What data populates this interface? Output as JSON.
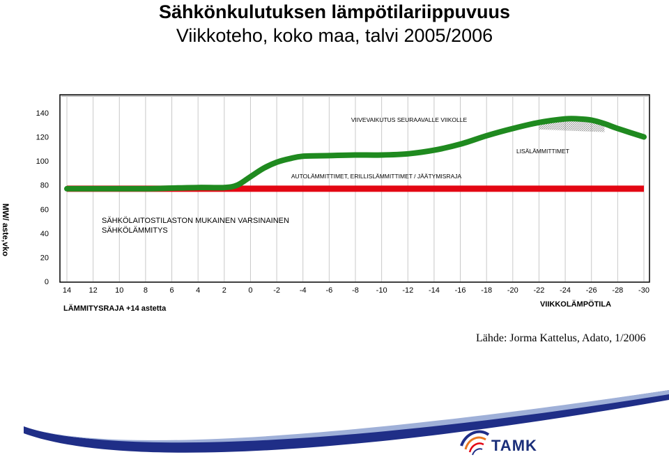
{
  "title": "Sähkönkulutuksen lämpötilariippuvuus",
  "subtitle": "Viikkoteho, koko maa, talvi 2005/2006",
  "source": "Lähde: Jorma Kattelus, Adato, 1/2006",
  "logo_text": "TAMK",
  "chart_data": {
    "type": "line",
    "ylabel": "MW/ aste,vko",
    "xlabel": "VIIKKOLÄMPÖTILA",
    "ylim": [
      0,
      140
    ],
    "yticks": [
      0,
      20,
      40,
      60,
      80,
      100,
      120,
      140
    ],
    "xticks": [
      14,
      12,
      10,
      8,
      6,
      4,
      2,
      0,
      -2,
      -4,
      -6,
      -8,
      -10,
      -12,
      -14,
      -16,
      -18,
      -20,
      -22,
      -24,
      -26,
      -28,
      -30
    ],
    "xlim": [
      14,
      -30
    ],
    "grid": "vertical",
    "series": [
      {
        "name": "",
        "color": "#e30613",
        "x": [
          14,
          -30
        ],
        "values": [
          77,
          77
        ]
      },
      {
        "name": "",
        "color": "#1f8a1f",
        "x": [
          14,
          12,
          10,
          8,
          6,
          4,
          2,
          1,
          0,
          -1,
          -2,
          -3,
          -4,
          -6,
          -8,
          -10,
          -12,
          -14,
          -16,
          -18,
          -20,
          -22,
          -24,
          -25,
          -26,
          -27,
          -28,
          -30
        ],
        "values": [
          77,
          77,
          77,
          77,
          77.5,
          78,
          78,
          80,
          87,
          94,
          99,
          102,
          104,
          104.5,
          105,
          105,
          106,
          109,
          114,
          121,
          127,
          132,
          135,
          135,
          134,
          131,
          127,
          120
        ]
      }
    ],
    "annotations": [
      "VIIVEVAIKUTUS SEURAAVALLE VIIKOLLE",
      "LISÄLÄMMITTIMET",
      "AUTOLÄMMITTIMET, ERILLISLÄMMITTIMET / JÄÄTYMISRAJA",
      "SÄHKÖLAITOSTILASTON MUKAINEN VARSINAINEN",
      "SÄHKÖLÄMMITYS",
      "LÄMMITYSRAJA +14 astetta"
    ]
  }
}
